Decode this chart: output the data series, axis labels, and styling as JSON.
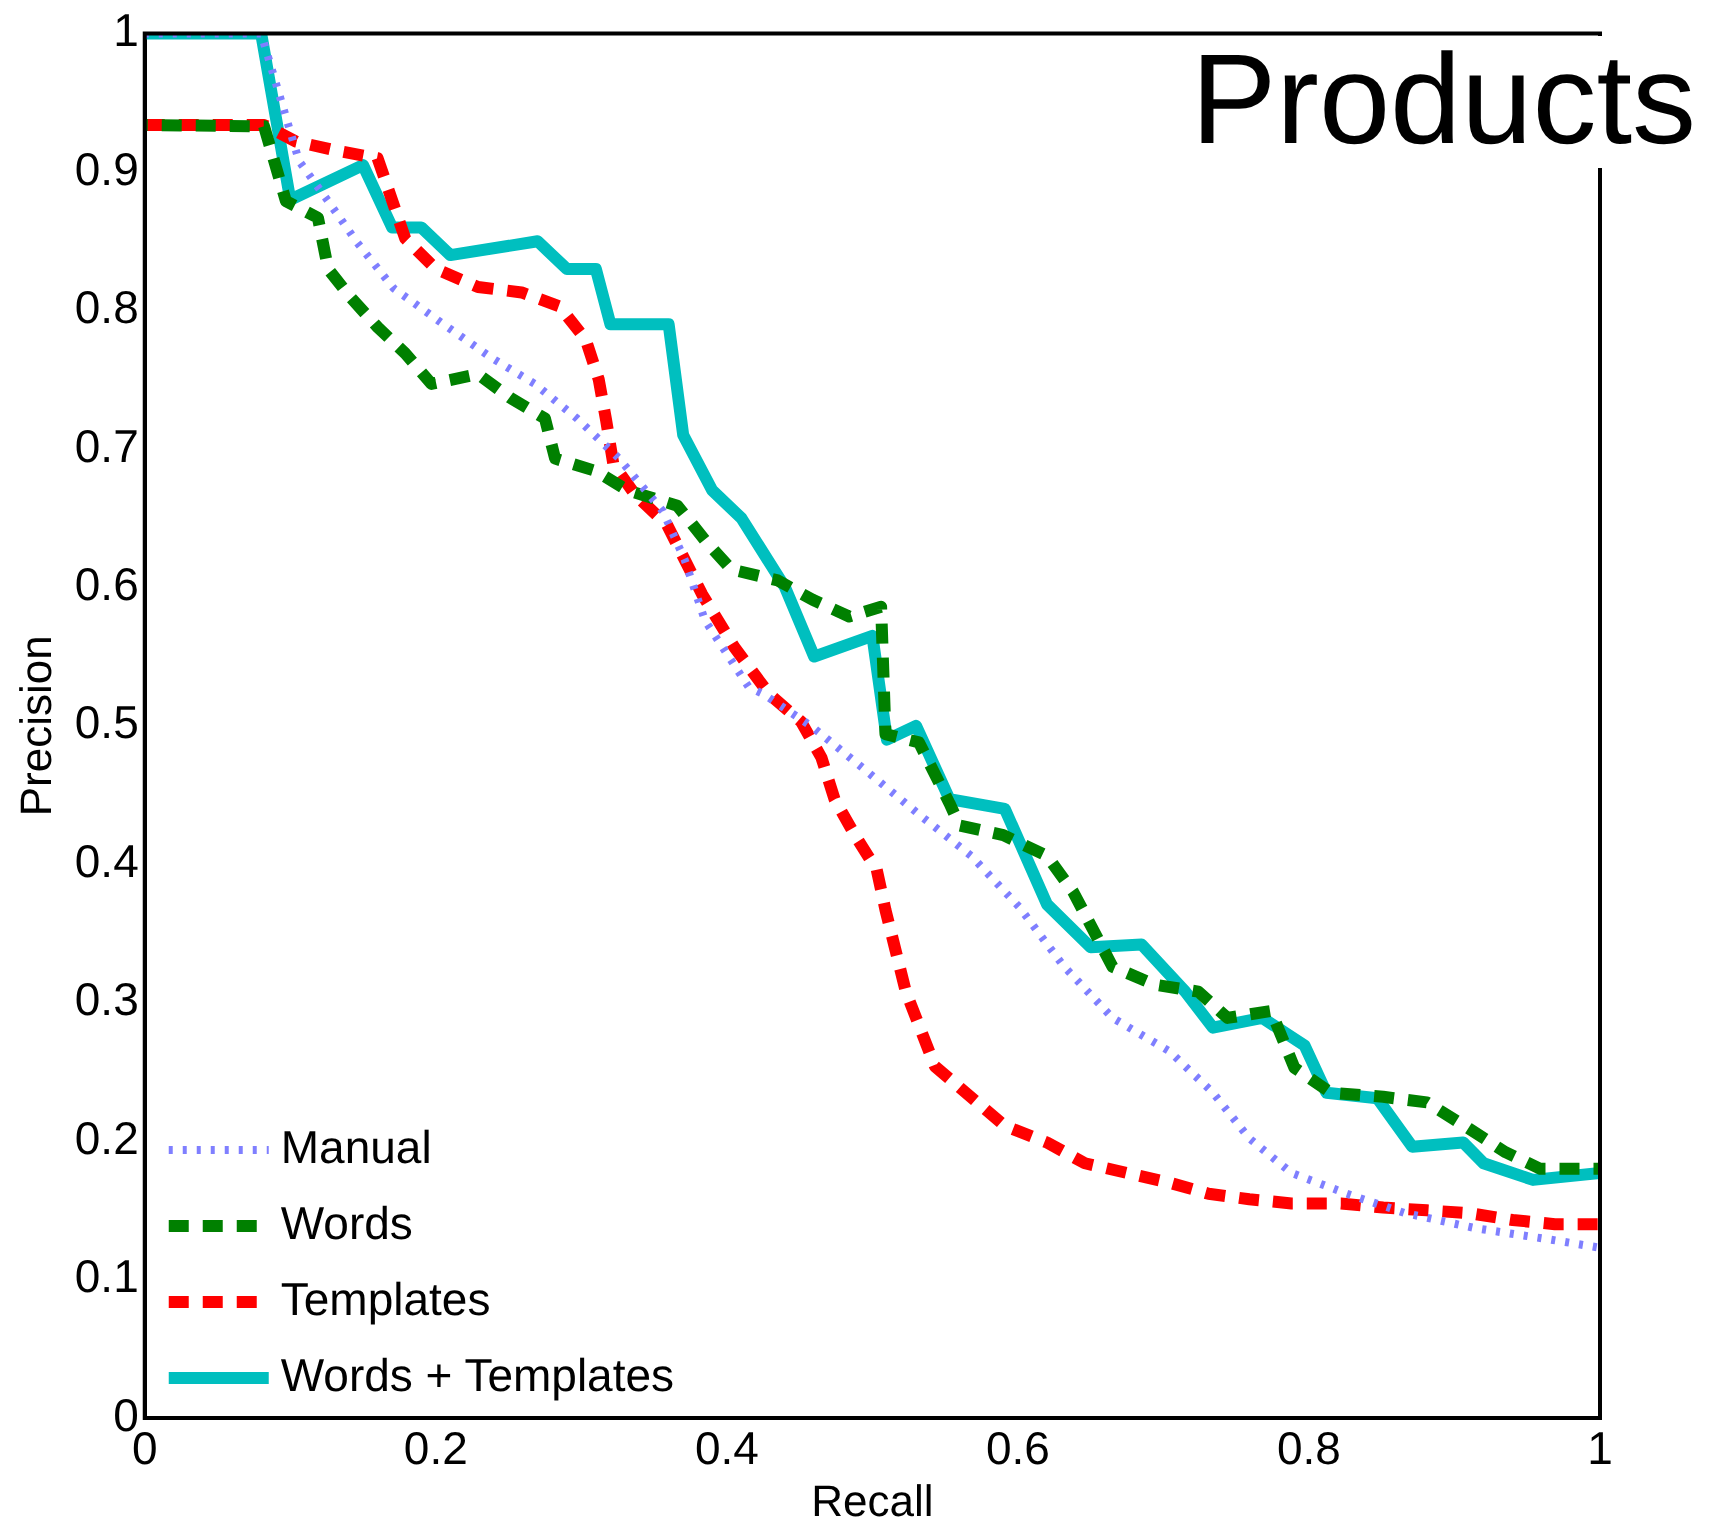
{
  "chart_data": {
    "type": "line",
    "title": "Products",
    "xlabel": "Recall",
    "ylabel": "Precision",
    "xlim": [
      0,
      1
    ],
    "ylim": [
      0,
      1
    ],
    "xticks": [
      0,
      0.2,
      0.4,
      0.6,
      0.8,
      1
    ],
    "yticks": [
      0,
      0.1,
      0.2,
      0.3,
      0.4,
      0.5,
      0.6,
      0.7,
      0.8,
      0.9,
      1
    ],
    "grid": false,
    "legend": "bottom left",
    "marker": "none",
    "series": [
      {
        "name": "Manual",
        "color": "#7f7fff",
        "line_style": "dotted",
        "x": [
          0,
          0.08,
          0.106,
          0.126,
          0.146,
          0.171,
          0.204,
          0.238,
          0.268,
          0.297,
          0.326,
          0.356,
          0.371,
          0.385,
          0.415,
          0.425,
          0.459,
          0.494,
          0.532,
          0.568,
          0.601,
          0.631,
          0.665,
          0.704,
          0.734,
          0.759,
          0.788,
          0.826,
          0.866,
          0.915,
          0.965,
          1
        ],
        "values": [
          1,
          1,
          0.908,
          0.879,
          0.849,
          0.816,
          0.791,
          0.766,
          0.747,
          0.722,
          0.693,
          0.655,
          0.62,
          0.576,
          0.528,
          0.523,
          0.499,
          0.469,
          0.436,
          0.406,
          0.369,
          0.327,
          0.289,
          0.265,
          0.235,
          0.202,
          0.177,
          0.162,
          0.148,
          0.137,
          0.129,
          0.123
        ]
      },
      {
        "name": "Words",
        "color": "#008000",
        "line_style": "dashed",
        "x": [
          0,
          0.082,
          0.097,
          0.119,
          0.126,
          0.141,
          0.16,
          0.179,
          0.197,
          0.229,
          0.251,
          0.275,
          0.282,
          0.31,
          0.332,
          0.366,
          0.385,
          0.403,
          0.435,
          0.459,
          0.484,
          0.506,
          0.509,
          0.532,
          0.553,
          0.56,
          0.59,
          0.62,
          0.638,
          0.665,
          0.694,
          0.724,
          0.744,
          0.774,
          0.79,
          0.815,
          0.851,
          0.881,
          0.91,
          0.935,
          0.959,
          1
        ],
        "values": [
          0.934,
          0.933,
          0.879,
          0.867,
          0.83,
          0.81,
          0.788,
          0.769,
          0.747,
          0.754,
          0.737,
          0.722,
          0.693,
          0.684,
          0.67,
          0.659,
          0.634,
          0.613,
          0.605,
          0.591,
          0.579,
          0.586,
          0.494,
          0.488,
          0.444,
          0.428,
          0.421,
          0.406,
          0.38,
          0.326,
          0.313,
          0.308,
          0.289,
          0.294,
          0.253,
          0.235,
          0.232,
          0.228,
          0.209,
          0.192,
          0.18,
          0.18
        ]
      },
      {
        "name": "Templates",
        "color": "#ff0000",
        "line_style": "dashed",
        "x": [
          0,
          0.082,
          0.104,
          0.134,
          0.16,
          0.179,
          0.2,
          0.229,
          0.259,
          0.285,
          0.303,
          0.312,
          0.317,
          0.322,
          0.337,
          0.359,
          0.383,
          0.405,
          0.429,
          0.451,
          0.465,
          0.474,
          0.488,
          0.503,
          0.509,
          0.523,
          0.543,
          0.572,
          0.591,
          0.62,
          0.646,
          0.675,
          0.704,
          0.731,
          0.759,
          0.788,
          0.822,
          0.851,
          0.881,
          0.91,
          0.94,
          0.969,
          1
        ],
        "values": [
          0.934,
          0.934,
          0.922,
          0.915,
          0.91,
          0.852,
          0.83,
          0.817,
          0.813,
          0.803,
          0.779,
          0.75,
          0.721,
          0.689,
          0.667,
          0.645,
          0.595,
          0.557,
          0.523,
          0.503,
          0.477,
          0.447,
          0.421,
          0.396,
          0.367,
          0.308,
          0.254,
          0.228,
          0.211,
          0.199,
          0.184,
          0.177,
          0.17,
          0.162,
          0.158,
          0.155,
          0.155,
          0.152,
          0.15,
          0.148,
          0.143,
          0.14,
          0.14
        ]
      },
      {
        "name": "Words + Templates",
        "color": "#00bfbf",
        "line_style": "solid",
        "x": [
          0,
          0.08,
          0.1,
          0.15,
          0.17,
          0.19,
          0.21,
          0.27,
          0.29,
          0.31,
          0.32,
          0.36,
          0.37,
          0.39,
          0.41,
          0.44,
          0.46,
          0.5,
          0.51,
          0.53,
          0.553,
          0.591,
          0.62,
          0.65,
          0.685,
          0.715,
          0.734,
          0.768,
          0.797,
          0.812,
          0.847,
          0.871,
          0.906,
          0.92,
          0.954,
          1
        ],
        "values": [
          1,
          1,
          0.88,
          0.905,
          0.86,
          0.86,
          0.84,
          0.85,
          0.83,
          0.83,
          0.79,
          0.79,
          0.71,
          0.67,
          0.65,
          0.6,
          0.55,
          0.565,
          0.49,
          0.5,
          0.447,
          0.44,
          0.371,
          0.34,
          0.342,
          0.308,
          0.282,
          0.289,
          0.269,
          0.235,
          0.231,
          0.196,
          0.199,
          0.184,
          0.172,
          0.177
        ]
      }
    ]
  }
}
